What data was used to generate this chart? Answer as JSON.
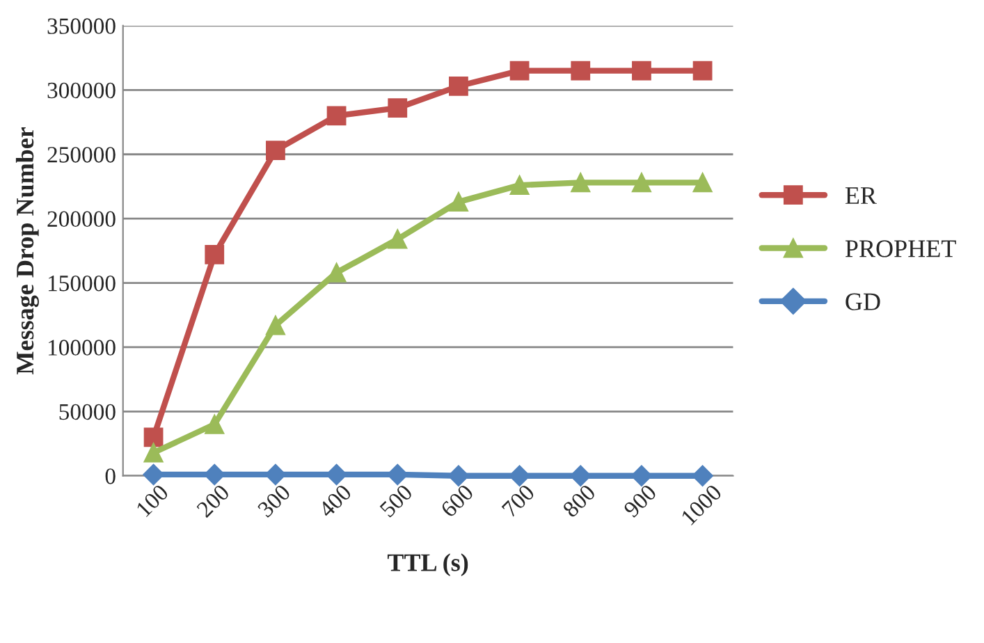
{
  "chart_data": {
    "type": "line",
    "xlabel": "TTL (s)",
    "ylabel": "Message Drop Number",
    "categories": [
      "100",
      "200",
      "300",
      "400",
      "500",
      "600",
      "700",
      "800",
      "900",
      "1000"
    ],
    "series": [
      {
        "name": "ER",
        "color": "#c0504d",
        "marker": "square",
        "values": [
          30000,
          172000,
          253000,
          280000,
          286000,
          303000,
          315000,
          315000,
          315000,
          315000
        ]
      },
      {
        "name": "PROPHET",
        "color": "#9bbb59",
        "marker": "triangle",
        "values": [
          18000,
          40000,
          117000,
          158000,
          184000,
          213000,
          226000,
          228000,
          228000,
          228000
        ]
      },
      {
        "name": "GD",
        "color": "#4f81bd",
        "marker": "diamond",
        "values": [
          1000,
          1000,
          1000,
          1000,
          1000,
          0,
          0,
          0,
          0,
          0
        ]
      }
    ],
    "ylim": [
      0,
      350000
    ],
    "yticks": [
      0,
      50000,
      100000,
      150000,
      200000,
      250000,
      300000,
      350000
    ],
    "grid": "y",
    "legend": "right",
    "line_style": "solid"
  }
}
